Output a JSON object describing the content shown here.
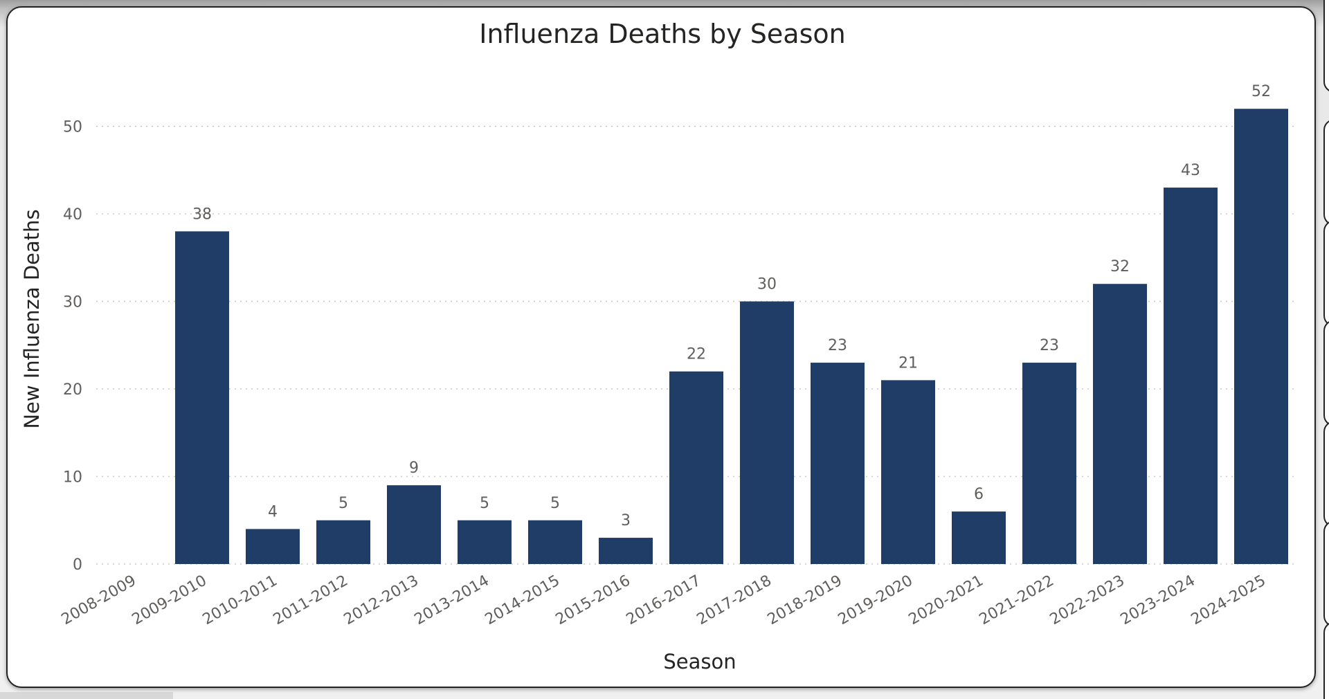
{
  "chart_data": {
    "type": "bar",
    "title": "Influenza Deaths by Season",
    "xlabel": "Season",
    "ylabel": "New Influenza Deaths",
    "categories": [
      "2008-2009",
      "2009-2010",
      "2010-2011",
      "2011-2012",
      "2012-2013",
      "2013-2014",
      "2014-2015",
      "2015-2016",
      "2016-2017",
      "2017-2018",
      "2018-2019",
      "2019-2020",
      "2020-2021",
      "2021-2022",
      "2022-2023",
      "2023-2024",
      "2024-2025"
    ],
    "values": [
      null,
      38,
      4,
      5,
      9,
      5,
      5,
      3,
      22,
      30,
      23,
      21,
      6,
      23,
      32,
      43,
      52
    ],
    "ylim": [
      0,
      55
    ],
    "yticks": [
      0,
      10,
      20,
      30,
      40,
      50
    ],
    "grid": "horizontal dotted",
    "legend": "none",
    "bar_color": "#1f3d66",
    "data_labels": true
  }
}
